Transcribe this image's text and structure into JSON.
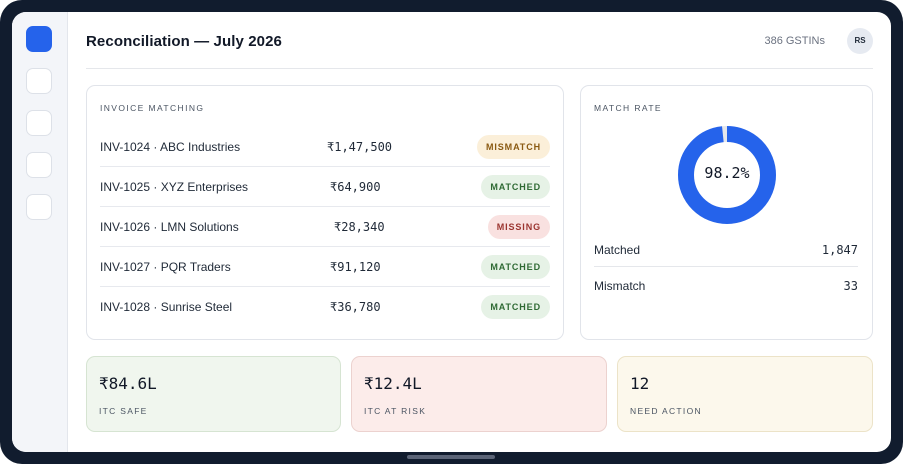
{
  "header": {
    "title": "Reconciliation — July 2026",
    "gstin_count": "386 GSTINs",
    "avatar_initials": "RS"
  },
  "sidebar": {
    "items": [
      "dashboard",
      "nav-2",
      "nav-3",
      "nav-4",
      "nav-5"
    ],
    "active_color": "#2563eb"
  },
  "invoice_matching": {
    "label": "INVOICE MATCHING",
    "rows": [
      {
        "name": "INV-1024 · ABC Industries",
        "amount": "₹1,47,500",
        "status": "MISMATCH",
        "status_kind": "mismatch"
      },
      {
        "name": "INV-1025 · XYZ Enterprises",
        "amount": "₹64,900",
        "status": "MATCHED",
        "status_kind": "matched"
      },
      {
        "name": "INV-1026 · LMN Solutions",
        "amount": "₹28,340",
        "status": "MISSING",
        "status_kind": "missing"
      },
      {
        "name": "INV-1027 · PQR Traders",
        "amount": "₹91,120",
        "status": "MATCHED",
        "status_kind": "matched"
      },
      {
        "name": "INV-1028 · Sunrise Steel",
        "amount": "₹36,780",
        "status": "MATCHED",
        "status_kind": "matched"
      }
    ]
  },
  "match_rate": {
    "label": "MATCH RATE",
    "percent": 98.2,
    "percent_text": "98.2%",
    "ring_color": "#2563eb",
    "track_color": "#e5e7eb",
    "stats": [
      {
        "key": "Matched",
        "value": "1,847"
      },
      {
        "key": "Mismatch",
        "value": "33"
      }
    ]
  },
  "summary": {
    "itc_safe": {
      "value": "₹84.6L",
      "label": "ITC SAFE"
    },
    "itc_risk": {
      "value": "₹12.4L",
      "label": "ITC AT RISK"
    },
    "need_action": {
      "value": "12",
      "label": "NEED ACTION"
    }
  }
}
